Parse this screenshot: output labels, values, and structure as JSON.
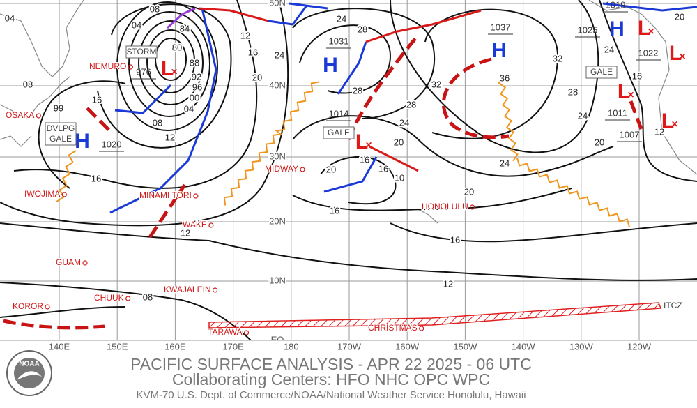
{
  "title": "PACIFIC SURFACE ANALYSIS - APR 22 2025 - 06 UTC",
  "subtitle": "Collaborating Centers:  HFO NHC OPC WPC",
  "footer": "KVM-70 U.S. Dept. of Commerce/NOAA/National Weather Service Honolulu, Hawaii",
  "logo": "NOAA",
  "longitudes": [
    "140E",
    "150E",
    "160E",
    "170E",
    "180",
    "170W",
    "160W",
    "150W",
    "140W",
    "130W",
    "120W"
  ],
  "latitudes": [
    "50N",
    "40N",
    "30N",
    "20N",
    "10N",
    "EQ"
  ],
  "places": [
    "NEMURO",
    "OSAKA",
    "IWOJIMA",
    "MINAMI TORI",
    "WAKE",
    "GUAM",
    "KWAJALEIN",
    "KOROR",
    "CHUUK",
    "TARAWA",
    "MIDWAY",
    "HONOLULU",
    "CHRISTMAS"
  ],
  "centers": [
    {
      "symbol": "H",
      "pressure": 1031
    },
    {
      "symbol": "H",
      "pressure": 1037
    },
    {
      "symbol": "H",
      "pressure": 1020
    },
    {
      "symbol": "H",
      "pressure": 1019
    },
    {
      "symbol": "L",
      "pressure": 976
    },
    {
      "symbol": "L",
      "pressure": 1014
    },
    {
      "symbol": "L",
      "pressure": 1025
    },
    {
      "symbol": "L",
      "pressure": 1022
    },
    {
      "symbol": "L",
      "pressure": 1011
    },
    {
      "symbol": "L",
      "pressure": 1007
    }
  ],
  "warnings": [
    [
      "STORM"
    ],
    [
      "GALE"
    ],
    [
      "DVLPG",
      "GALE"
    ],
    [
      "GALE"
    ]
  ],
  "itcz": "ITCZ",
  "isobar_labels": [
    "04",
    "08",
    "04",
    "84",
    "80",
    "88",
    "92",
    "96",
    "00",
    "04",
    "08",
    "12",
    "12",
    "16",
    "20",
    "24",
    "08",
    "16",
    "99",
    "16",
    "12",
    "08",
    "24",
    "28",
    "28",
    "32",
    "28",
    "24",
    "20",
    "16",
    "16",
    "10",
    "20",
    "20",
    "16",
    "16",
    "12",
    "36",
    "32",
    "28",
    "24",
    "24",
    "20",
    "16",
    "12",
    "20",
    "24"
  ]
}
